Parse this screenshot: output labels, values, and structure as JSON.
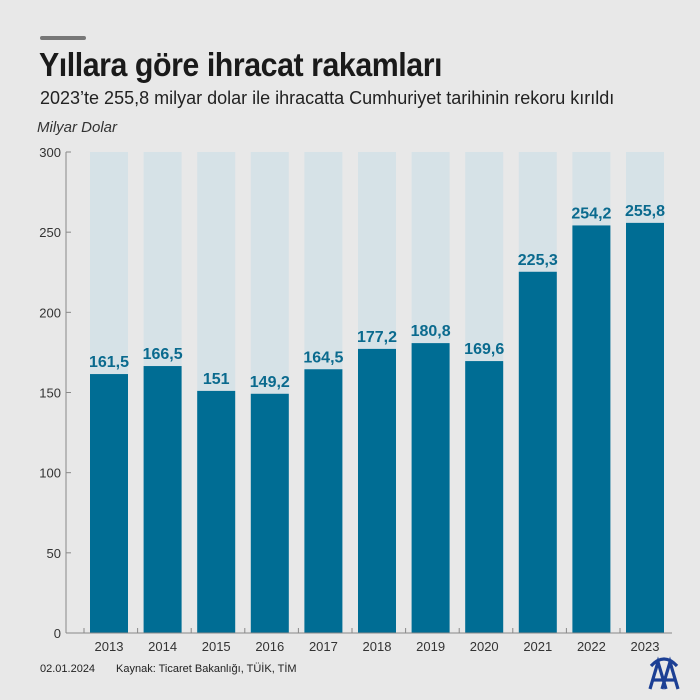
{
  "header": {
    "title": "Yıllara göre ihracat rakamları",
    "subtitle": "2023’te 255,8 milyar dolar ile ihracatta Cumhuriyet tarihinin rekoru kırıldı",
    "unit_label": "Milyar Dolar"
  },
  "chart_data": {
    "type": "bar",
    "categories": [
      "2013",
      "2014",
      "2015",
      "2016",
      "2017",
      "2018",
      "2019",
      "2020",
      "2021",
      "2022",
      "2023"
    ],
    "values": [
      161.5,
      166.5,
      151,
      149.2,
      164.5,
      177.2,
      180.8,
      169.6,
      225.3,
      254.2,
      255.8
    ],
    "data_labels": [
      "161,5",
      "166,5",
      "151",
      "149,2",
      "164,5",
      "177,2",
      "180,8",
      "169,6",
      "225,3",
      "254,2",
      "255,8"
    ],
    "ylabel": "Milyar Dolar",
    "ylim": [
      0,
      300
    ],
    "yticks": [
      0,
      50,
      100,
      150,
      200,
      250,
      300
    ],
    "grid": false,
    "colors": {
      "bar": "#006d94",
      "background_bar": "#d6e2e7",
      "label": "#0a6a8e"
    }
  },
  "footer": {
    "date": "02.01.2024",
    "source": "Kaynak: Ticaret Bakanlığı, TÜİK, TİM",
    "logo_text": "AA"
  }
}
